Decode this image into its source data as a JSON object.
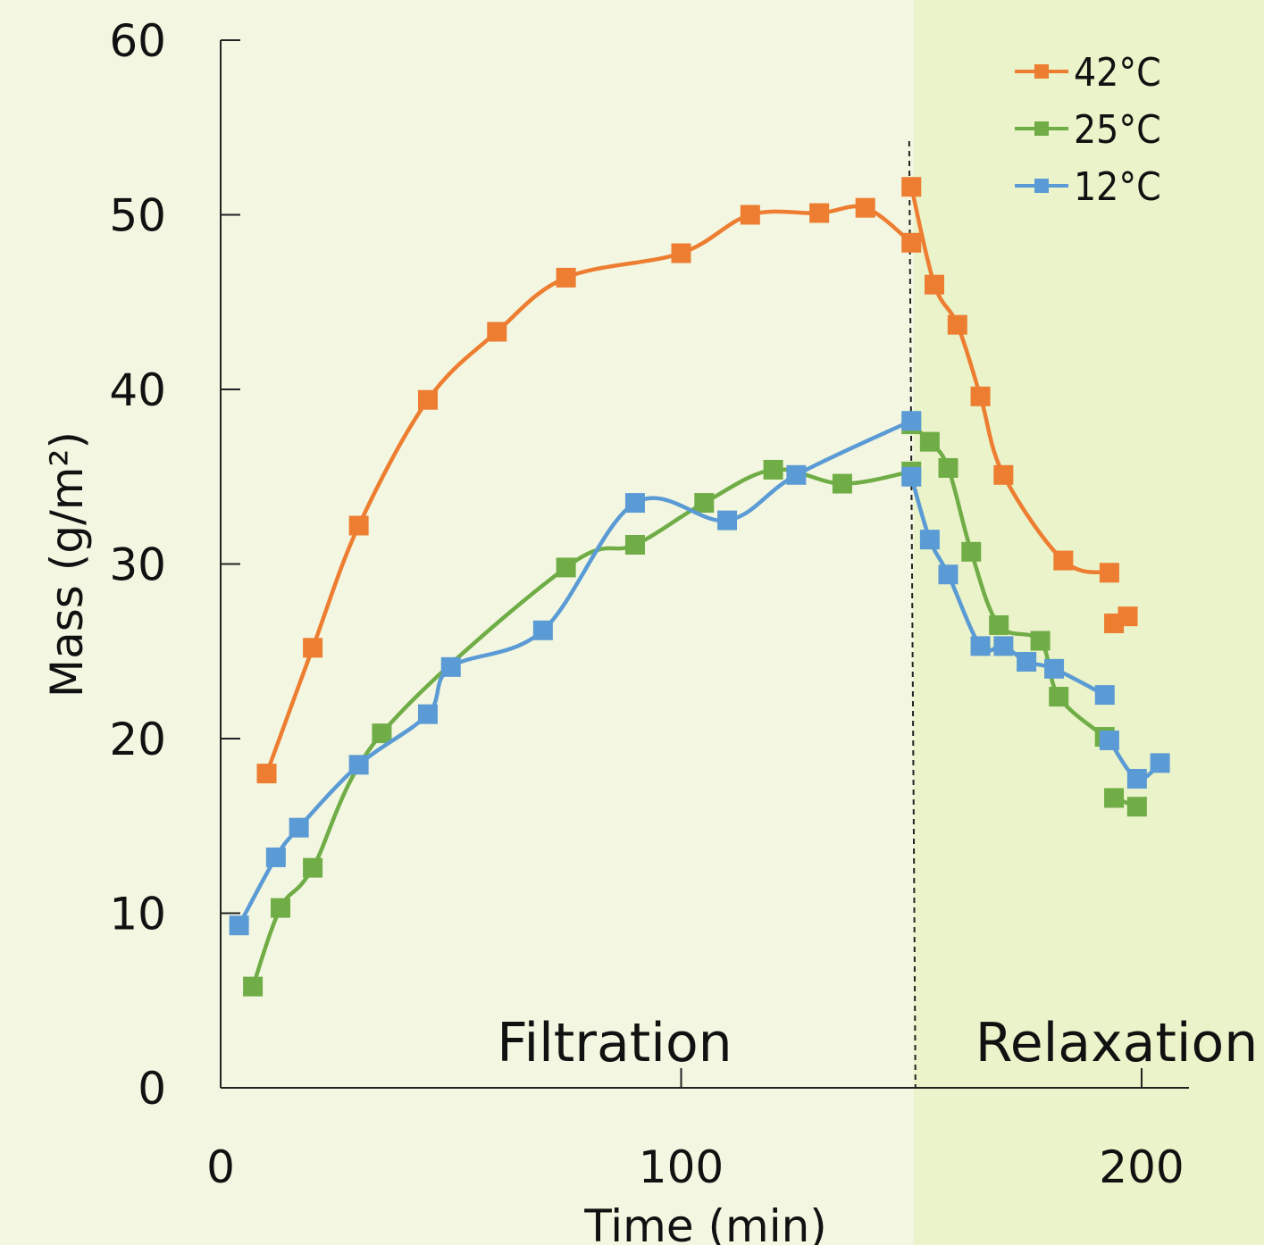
{
  "chart_data": {
    "type": "line",
    "xlabel": "Time (min)",
    "ylabel": "Mass (g/m²)",
    "xlim": [
      0,
      210
    ],
    "ylim": [
      0,
      60
    ],
    "x_ticks": [
      0,
      100,
      200
    ],
    "y_ticks": [
      0,
      10,
      20,
      30,
      40,
      50,
      60
    ],
    "legend_position": "top-right",
    "divider_x": 150.5,
    "regions": [
      {
        "label": "Filtration",
        "x_start": 0,
        "x_end": 150.5,
        "color": "#f3f7e1"
      },
      {
        "label": "Relaxation",
        "x_start": 150.5,
        "x_end": 210,
        "color": "#eaf3c9"
      }
    ],
    "series": [
      {
        "name": "42°C",
        "color": "#ed7d31",
        "segments": [
          [
            [
              10,
              18.0
            ],
            [
              20,
              25.2
            ],
            [
              30,
              32.2
            ],
            [
              45,
              39.4
            ],
            [
              60,
              43.3
            ],
            [
              75,
              46.4
            ],
            [
              100,
              47.8
            ],
            [
              115,
              50.0
            ],
            [
              130,
              50.1
            ],
            [
              140,
              50.4
            ],
            [
              150,
              48.4
            ]
          ],
          [
            [
              150,
              51.6
            ],
            [
              155,
              46.0
            ],
            [
              160,
              43.7
            ],
            [
              165,
              39.6
            ],
            [
              170,
              35.1
            ],
            [
              183,
              30.2
            ],
            [
              193,
              29.5
            ]
          ],
          [
            [
              194,
              26.6
            ],
            [
              197,
              27.0
            ]
          ]
        ]
      },
      {
        "name": "25°C",
        "color": "#70ad47",
        "segments": [
          [
            [
              7,
              5.8
            ],
            [
              13,
              10.3
            ],
            [
              20,
              12.6
            ],
            [
              35,
              20.3
            ],
            [
              75,
              29.8
            ],
            [
              90,
              31.1
            ],
            [
              105,
              33.5
            ],
            [
              120,
              35.4
            ],
            [
              135,
              34.6
            ],
            [
              150,
              35.3
            ]
          ],
          [
            [
              150,
              38.0
            ],
            [
              154,
              37.0
            ],
            [
              158,
              35.5
            ],
            [
              163,
              30.7
            ],
            [
              169,
              26.5
            ],
            [
              178,
              25.6
            ],
            [
              182,
              22.4
            ],
            [
              192,
              20.1
            ]
          ],
          [
            [
              194,
              16.6
            ],
            [
              199,
              16.1
            ]
          ]
        ]
      },
      {
        "name": "12°C",
        "color": "#5b9bd5",
        "segments": [
          [
            [
              4,
              9.3
            ],
            [
              12,
              13.2
            ],
            [
              17,
              14.9
            ],
            [
              30,
              18.5
            ],
            [
              45,
              21.4
            ],
            [
              50,
              24.1
            ],
            [
              70,
              26.2
            ],
            [
              90,
              33.5
            ],
            [
              110,
              32.5
            ],
            [
              125,
              35.1
            ],
            [
              150,
              38.2
            ]
          ],
          [
            [
              150,
              35.0
            ],
            [
              154,
              31.4
            ],
            [
              158,
              29.4
            ],
            [
              165,
              25.3
            ],
            [
              170,
              25.3
            ],
            [
              175,
              24.4
            ],
            [
              181,
              24.0
            ],
            [
              192,
              22.5
            ]
          ],
          [
            [
              193,
              19.9
            ],
            [
              199,
              17.7
            ],
            [
              204,
              18.6
            ]
          ]
        ]
      }
    ]
  }
}
